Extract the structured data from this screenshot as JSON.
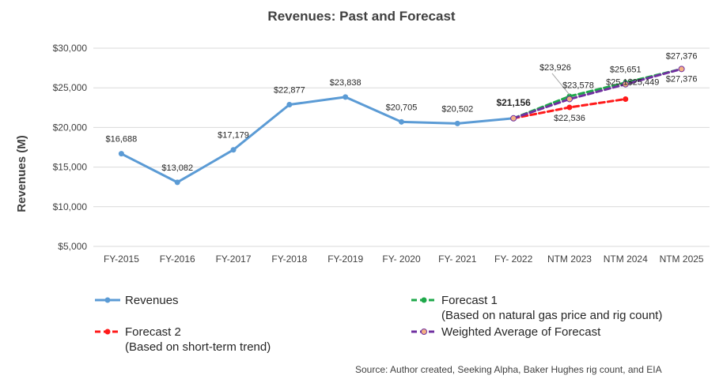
{
  "chart_data": {
    "type": "line",
    "title": "Revenues: Past and Forecast",
    "ylabel": "Revenues (M)",
    "xlabel": "",
    "ylim": [
      5000,
      30000
    ],
    "y_ticks": [
      "$5,000",
      "$10,000",
      "$15,000",
      "$20,000",
      "$25,000",
      "$30,000"
    ],
    "y_tick_values": [
      5000,
      10000,
      15000,
      20000,
      25000,
      30000
    ],
    "categories": [
      "FY-2015",
      "FY-2016",
      "FY-2017",
      "FY-2018",
      "FY-2019",
      "FY- 2020",
      "FY- 2021",
      "FY- 2022",
      "NTM 2023",
      "NTM 2024",
      "NTM 2025"
    ],
    "grid": "horizontal",
    "legend_position": "bottom",
    "series": [
      {
        "key": "revenues",
        "name": "Revenues",
        "color": "#5b9bd5",
        "dash": "solid",
        "marker_color": "#5b9bd5",
        "values": [
          16688,
          13082,
          17179,
          22877,
          23838,
          20705,
          20502,
          21156,
          null,
          null,
          null
        ],
        "labels": [
          "$16,688",
          "$13,082",
          "$17,179",
          "$22,877",
          "$23,838",
          "$20,705",
          "$20,502",
          "$21,156",
          null,
          null,
          null
        ]
      },
      {
        "key": "forecast1",
        "name": "Forecast 1",
        "name_line2": "(Based on natural gas price and rig count)",
        "color": "#1ea84a",
        "dash": "dashed",
        "marker_color": "#1ea84a",
        "values": [
          null,
          null,
          null,
          null,
          null,
          null,
          null,
          21156,
          23926,
          25651,
          27376
        ],
        "labels": [
          null,
          null,
          null,
          null,
          null,
          null,
          null,
          null,
          "$23,926",
          "$25,651",
          "$27,376"
        ]
      },
      {
        "key": "forecast2",
        "name": "Forecast 2",
        "name_line2": "(Based on short-term trend)",
        "color": "#ff1a1a",
        "dash": "dashed",
        "marker_color": "#ff1a1a",
        "values": [
          null,
          null,
          null,
          null,
          null,
          null,
          null,
          21156,
          22536,
          23578,
          null
        ],
        "labels": [
          null,
          null,
          null,
          null,
          null,
          null,
          null,
          null,
          "$22,536",
          null,
          null
        ]
      },
      {
        "key": "weighted",
        "name": "Weighted Average of Forecast",
        "color": "#7030a0",
        "dash": "dashed",
        "marker_color": "#f4b183",
        "values": [
          null,
          null,
          null,
          null,
          null,
          null,
          null,
          21156,
          23578,
          25449,
          27376
        ],
        "labels": [
          null,
          null,
          null,
          null,
          null,
          null,
          null,
          null,
          "$23,578",
          "$25,449",
          "$27,376"
        ]
      }
    ],
    "overlap_label": "$25,1$25,449",
    "source": "Source: Author created, Seeking Alpha, Baker Hughes rig count, and EIA"
  }
}
